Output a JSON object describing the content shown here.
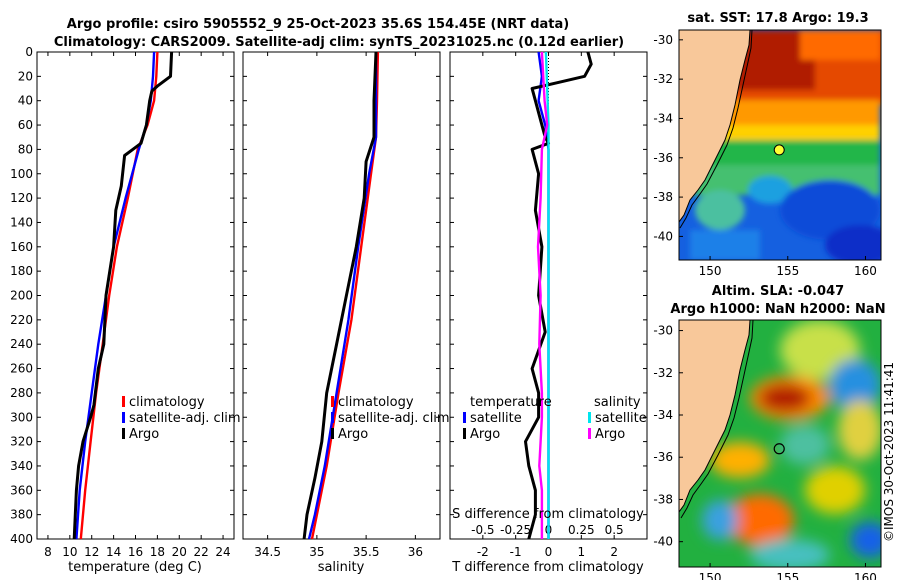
{
  "title_line1": "Argo profile: csiro 5905552_9 25-Oct-2023 35.6S 154.45E (NRT data)",
  "title_line2": "Climatology: CARS2009. Satellite-adj clim: synTS_20231025.nc (0.12d earlier)",
  "colors": {
    "climatology": "#ff0000",
    "satellite": "#0000ff",
    "argo": "#000000",
    "sal_satellite": "#00e5ee",
    "sal_argo": "#ff00ff"
  },
  "chart_data": [
    {
      "type": "line",
      "id": "temperature",
      "xlabel": "temperature (deg C)",
      "ylabel": "",
      "xlim": [
        7,
        25
      ],
      "ylim": [
        400,
        0
      ],
      "xticks": [
        "8",
        "10",
        "12",
        "14",
        "16",
        "18",
        "20",
        "22",
        "24"
      ],
      "xtick_values": [
        8,
        10,
        12,
        14,
        16,
        18,
        20,
        22,
        24
      ],
      "yticks": [
        "0",
        "20",
        "40",
        "60",
        "80",
        "100",
        "120",
        "140",
        "160",
        "180",
        "200",
        "220",
        "240",
        "260",
        "280",
        "300",
        "320",
        "340",
        "360",
        "380",
        "400"
      ],
      "ytick_values": [
        0,
        20,
        40,
        60,
        80,
        100,
        120,
        140,
        160,
        180,
        200,
        220,
        240,
        260,
        280,
        300,
        320,
        340,
        360,
        380,
        400
      ],
      "legend": [
        "climatology",
        "satellite-adj. clim",
        "Argo"
      ],
      "series": [
        {
          "name": "climatology",
          "color": "#ff0000",
          "points": [
            [
              18.0,
              0
            ],
            [
              17.9,
              20
            ],
            [
              17.7,
              40
            ],
            [
              17.1,
              60
            ],
            [
              16.2,
              80
            ],
            [
              15.3,
              120
            ],
            [
              14.3,
              160
            ],
            [
              13.6,
              200
            ],
            [
              13.0,
              240
            ],
            [
              12.4,
              280
            ],
            [
              11.9,
              320
            ],
            [
              11.4,
              360
            ],
            [
              11.0,
              400
            ]
          ]
        },
        {
          "name": "satellite-adj. clim",
          "color": "#0000ff",
          "points": [
            [
              17.7,
              0
            ],
            [
              17.6,
              20
            ],
            [
              17.4,
              40
            ],
            [
              17.0,
              60
            ],
            [
              16.3,
              80
            ],
            [
              15.1,
              120
            ],
            [
              14.0,
              160
            ],
            [
              13.3,
              200
            ],
            [
              12.6,
              240
            ],
            [
              12.0,
              280
            ],
            [
              11.4,
              320
            ],
            [
              10.9,
              360
            ],
            [
              10.6,
              400
            ]
          ]
        },
        {
          "name": "Argo",
          "color": "#000000",
          "points": [
            [
              19.3,
              0
            ],
            [
              19.2,
              20
            ],
            [
              18.0,
              28
            ],
            [
              17.5,
              32
            ],
            [
              17.3,
              40
            ],
            [
              17.0,
              60
            ],
            [
              16.5,
              75
            ],
            [
              15.0,
              85
            ],
            [
              14.7,
              110
            ],
            [
              14.2,
              130
            ],
            [
              14.0,
              160
            ],
            [
              13.3,
              200
            ],
            [
              13.1,
              240
            ],
            [
              12.6,
              260
            ],
            [
              12.2,
              290
            ],
            [
              11.9,
              300
            ],
            [
              11.2,
              320
            ],
            [
              10.8,
              340
            ],
            [
              10.6,
              360
            ],
            [
              10.5,
              380
            ],
            [
              10.4,
              400
            ]
          ]
        }
      ]
    },
    {
      "type": "line",
      "id": "salinity",
      "xlabel": "salinity",
      "ylabel": "",
      "xlim": [
        34.25,
        36.25
      ],
      "ylim": [
        400,
        0
      ],
      "xticks": [
        "34.5",
        "35",
        "35.5",
        "36"
      ],
      "xtick_values": [
        34.5,
        35,
        35.5,
        36
      ],
      "legend": [
        "climatology",
        "satellite-adj. clim",
        "Argo"
      ],
      "series": [
        {
          "name": "climatology",
          "color": "#ff0000",
          "points": [
            [
              35.62,
              0
            ],
            [
              35.61,
              40
            ],
            [
              35.6,
              70
            ],
            [
              35.55,
              100
            ],
            [
              35.45,
              160
            ],
            [
              35.35,
              220
            ],
            [
              35.22,
              280
            ],
            [
              35.1,
              340
            ],
            [
              35.0,
              380
            ],
            [
              34.95,
              400
            ]
          ]
        },
        {
          "name": "satellite-adj. clim",
          "color": "#0000ff",
          "points": [
            [
              35.6,
              0
            ],
            [
              35.6,
              40
            ],
            [
              35.6,
              70
            ],
            [
              35.53,
              100
            ],
            [
              35.42,
              160
            ],
            [
              35.32,
              220
            ],
            [
              35.2,
              280
            ],
            [
              35.08,
              340
            ],
            [
              34.98,
              380
            ],
            [
              34.92,
              400
            ]
          ]
        },
        {
          "name": "Argo",
          "color": "#000000",
          "points": [
            [
              35.6,
              0
            ],
            [
              35.58,
              40
            ],
            [
              35.58,
              70
            ],
            [
              35.5,
              90
            ],
            [
              35.48,
              120
            ],
            [
              35.4,
              160
            ],
            [
              35.3,
              200
            ],
            [
              35.2,
              240
            ],
            [
              35.1,
              280
            ],
            [
              35.05,
              320
            ],
            [
              34.98,
              350
            ],
            [
              34.9,
              380
            ],
            [
              34.87,
              400
            ]
          ]
        }
      ]
    },
    {
      "type": "line",
      "id": "difference",
      "xlabel": "T difference from climatology",
      "xlabel_top": "S difference from climatology",
      "xlim": [
        -3,
        3
      ],
      "ylim": [
        400,
        0
      ],
      "xticks": [
        "-2",
        "-1",
        "0",
        "1",
        "2"
      ],
      "xtick_values": [
        -2,
        -1,
        0,
        1,
        2
      ],
      "sticks": [
        "-0.5",
        "-0.25",
        "0",
        "0.25",
        "0.5"
      ],
      "legend_temperature_title": "temperature",
      "legend_salinity_title": "salinity",
      "legend": [
        "satellite",
        "Argo",
        "satellite",
        "Argo"
      ],
      "series": [
        {
          "name": "temperature satellite",
          "color": "#0000ff",
          "points": [
            [
              -0.3,
              0
            ],
            [
              -0.2,
              20
            ],
            [
              -0.3,
              40
            ],
            [
              -0.1,
              60
            ],
            [
              0.0,
              80
            ],
            [
              0.0,
              150
            ],
            [
              0.0,
              250
            ],
            [
              0.0,
              400
            ]
          ]
        },
        {
          "name": "temperature Argo",
          "color": "#000000",
          "points": [
            [
              1.2,
              0
            ],
            [
              1.3,
              10
            ],
            [
              1.1,
              20
            ],
            [
              0.3,
              25
            ],
            [
              -0.5,
              30
            ],
            [
              -0.4,
              40
            ],
            [
              -0.2,
              60
            ],
            [
              -0.1,
              70
            ],
            [
              0.0,
              75
            ],
            [
              -0.5,
              80
            ],
            [
              -0.3,
              100
            ],
            [
              -0.4,
              130
            ],
            [
              -0.2,
              160
            ],
            [
              -0.3,
              200
            ],
            [
              -0.1,
              230
            ],
            [
              -0.5,
              260
            ],
            [
              -0.3,
              280
            ],
            [
              -0.3,
              300
            ],
            [
              -0.7,
              320
            ],
            [
              -0.6,
              340
            ],
            [
              -0.4,
              360
            ],
            [
              -0.4,
              380
            ],
            [
              -0.6,
              400
            ]
          ]
        },
        {
          "name": "salinity satellite",
          "color": "#00e5ee",
          "points": [
            [
              -0.02,
              0
            ],
            [
              0.0,
              60
            ],
            [
              0.0,
              100
            ],
            [
              0.0,
              200
            ],
            [
              0.0,
              300
            ],
            [
              0.0,
              400
            ]
          ]
        },
        {
          "name": "salinity Argo",
          "color": "#ff00ff",
          "points": [
            [
              -0.05,
              0
            ],
            [
              -0.03,
              40
            ],
            [
              -0.01,
              60
            ],
            [
              -0.05,
              80
            ],
            [
              -0.06,
              120
            ],
            [
              -0.08,
              160
            ],
            [
              -0.06,
              200
            ],
            [
              -0.07,
              240
            ],
            [
              -0.05,
              280
            ],
            [
              -0.05,
              300
            ],
            [
              -0.07,
              340
            ],
            [
              -0.05,
              360
            ],
            [
              -0.05,
              400
            ]
          ]
        }
      ]
    },
    {
      "type": "heatmap",
      "id": "sst_map",
      "title": "sat. SST: 17.8 Argo: 19.3",
      "xticks": [
        "150",
        "155",
        "160"
      ],
      "xtick_values": [
        150,
        155,
        160
      ],
      "yticks": [
        "-30",
        "-32",
        "-34",
        "-36",
        "-38",
        "-40"
      ],
      "ytick_values": [
        -30,
        -32,
        -34,
        -36,
        -38,
        -40
      ],
      "xlim": [
        148,
        161
      ],
      "ylim": [
        -41.2,
        -29.5
      ],
      "float_position": [
        154.45,
        -35.6
      ]
    },
    {
      "type": "heatmap",
      "id": "sla_map",
      "title": "Altim. SLA: -0.047",
      "title_line2": "Argo h1000: NaN h2000: NaN",
      "xticks": [
        "150",
        "155",
        "160"
      ],
      "xtick_values": [
        150,
        155,
        160
      ],
      "yticks": [
        "-30",
        "-32",
        "-34",
        "-36",
        "-38",
        "-40"
      ],
      "ytick_values": [
        -30,
        -32,
        -34,
        -36,
        -38,
        -40
      ],
      "xlim": [
        148,
        161
      ],
      "ylim": [
        -41.2,
        -29.5
      ],
      "float_position": [
        154.45,
        -35.6
      ]
    }
  ],
  "credit": "©IMOS 30-Oct-2023 11:41:41"
}
